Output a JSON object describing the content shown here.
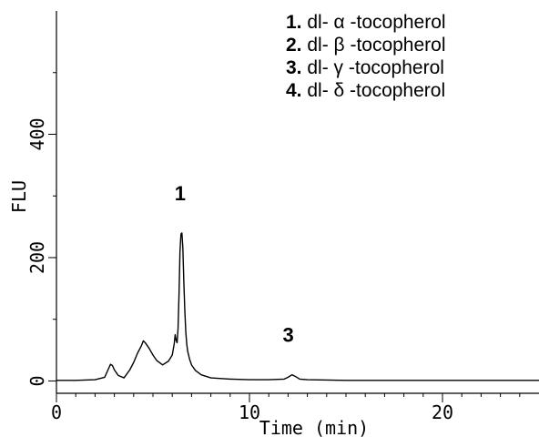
{
  "chart_data": {
    "type": "line",
    "xlabel": "Time (min)",
    "ylabel": "FLU",
    "xlim": [
      0,
      25
    ],
    "ylim": [
      -20,
      600
    ],
    "x_ticks": [
      0,
      10,
      20
    ],
    "x_tick_labels": [
      "0",
      "10",
      "20"
    ],
    "y_ticks": [
      0,
      200,
      400
    ],
    "y_tick_labels": [
      "0",
      "200",
      "400"
    ],
    "legend": [
      "1. dl- α -tocopherol",
      "2. dl- β -tocopherol",
      "3. dl- γ -tocopherol",
      "4. dl- δ -tocopherol"
    ],
    "legend_items": [
      {
        "number": "1.",
        "text": "dl- α -tocopherol"
      },
      {
        "number": "2.",
        "text": "dl- β -tocopherol"
      },
      {
        "number": "3.",
        "text": "dl- γ -tocopherol"
      },
      {
        "number": "4.",
        "text": "dl- δ -tocopherol"
      }
    ],
    "legend_position": "top-right",
    "peak_labels": [
      {
        "label": "1",
        "x": 6.6,
        "y": 240
      },
      {
        "label": "3",
        "x": 12.2,
        "y": 10
      }
    ],
    "series": [
      {
        "x": [
          0,
          1.0,
          2.0,
          2.5,
          2.7,
          2.8,
          2.9,
          3.0,
          3.2,
          3.5,
          3.8,
          4.0,
          4.2,
          4.4,
          4.5,
          4.6,
          4.8,
          5.0,
          5.2,
          5.5,
          5.8,
          6.0,
          6.1,
          6.15,
          6.2,
          6.25,
          6.3,
          6.35,
          6.4,
          6.45,
          6.5,
          6.55,
          6.6,
          6.65,
          6.7,
          6.75,
          6.8,
          6.9,
          7.0,
          7.2,
          7.5,
          8.0,
          9.0,
          10.0,
          11.0,
          11.8,
          12.0,
          12.2,
          12.4,
          12.6,
          13.0,
          15.0,
          20.0,
          25.0
        ],
        "y": [
          1,
          1,
          2,
          6,
          20,
          27,
          25,
          18,
          9,
          5,
          18,
          30,
          45,
          57,
          65,
          62,
          53,
          42,
          33,
          26,
          32,
          42,
          60,
          75,
          66,
          62,
          85,
          140,
          210,
          238,
          240,
          215,
          160,
          115,
          80,
          60,
          48,
          35,
          26,
          17,
          10,
          5,
          3,
          2,
          2,
          3,
          6,
          10,
          7,
          3,
          2,
          1,
          1,
          1
        ]
      }
    ]
  }
}
